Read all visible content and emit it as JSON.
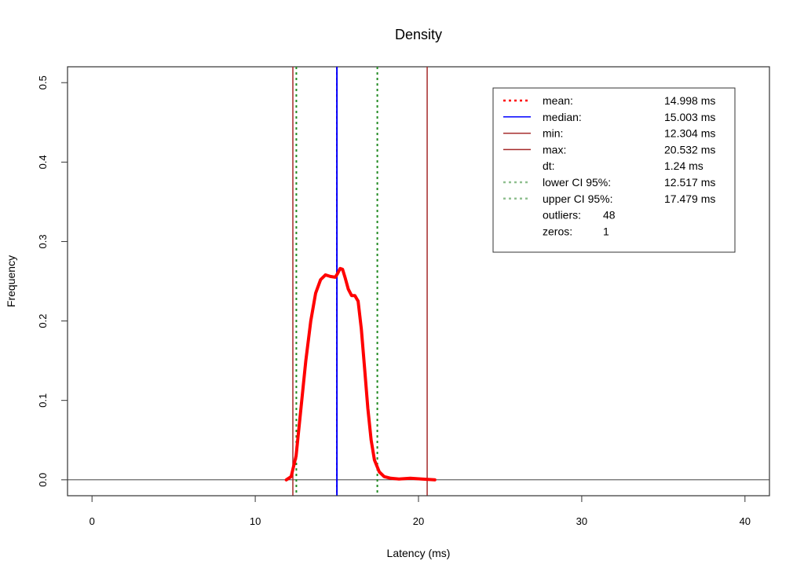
{
  "chart_data": {
    "type": "line",
    "title": "Density",
    "xlabel": "Latency (ms)",
    "ylabel": "Frequency",
    "xlim": [
      -1.5,
      41.5
    ],
    "ylim": [
      -0.02,
      0.52
    ],
    "x_ticks": [
      0,
      10,
      20,
      30,
      40
    ],
    "y_ticks": [
      0.0,
      0.1,
      0.2,
      0.3,
      0.4,
      0.5
    ],
    "x_tick_labels": [
      "0",
      "10",
      "20",
      "30",
      "40"
    ],
    "y_tick_labels": [
      "0.0",
      "0.1",
      "0.2",
      "0.3",
      "0.4",
      "0.5"
    ],
    "legend_position": "top-right",
    "density": {
      "color": "#ff0000",
      "x": [
        11.9,
        12.2,
        12.5,
        12.8,
        13.1,
        13.4,
        13.7,
        14.0,
        14.3,
        14.6,
        14.9,
        15.05,
        15.2,
        15.35,
        15.5,
        15.7,
        15.9,
        16.1,
        16.3,
        16.5,
        16.7,
        16.9,
        17.1,
        17.3,
        17.6,
        17.9,
        18.3,
        18.8,
        19.5,
        20.2,
        21.0
      ],
      "y": [
        0.0,
        0.004,
        0.03,
        0.09,
        0.15,
        0.2,
        0.235,
        0.252,
        0.258,
        0.256,
        0.255,
        0.26,
        0.266,
        0.265,
        0.255,
        0.24,
        0.232,
        0.232,
        0.225,
        0.19,
        0.14,
        0.09,
        0.05,
        0.025,
        0.01,
        0.004,
        0.002,
        0.001,
        0.002,
        0.001,
        0.0
      ]
    },
    "vlines": [
      {
        "name": "mean",
        "x": 14.998,
        "color": "#ff0000",
        "style": "dotted"
      },
      {
        "name": "median",
        "x": 15.003,
        "color": "#0000ff",
        "style": "solid"
      },
      {
        "name": "min",
        "x": 12.304,
        "color": "#a52a2a",
        "style": "solid"
      },
      {
        "name": "max",
        "x": 20.532,
        "color": "#a52a2a",
        "style": "solid"
      },
      {
        "name": "lower CI 95%",
        "x": 12.517,
        "color": "#228b22",
        "style": "dotted"
      },
      {
        "name": "upper CI 95%",
        "x": 17.479,
        "color": "#228b22",
        "style": "dotted"
      }
    ],
    "hline": {
      "y": 0.0,
      "color": "#444444"
    },
    "legend": [
      {
        "label": "mean:",
        "value": "14.998 ms",
        "color": "#ff0000",
        "style": "dotted"
      },
      {
        "label": "median:",
        "value": "15.003 ms",
        "color": "#0000ff",
        "style": "solid"
      },
      {
        "label": "min:",
        "value": "12.304 ms",
        "color": "#a52a2a",
        "style": "solid"
      },
      {
        "label": "max:",
        "value": "20.532 ms",
        "color": "#a52a2a",
        "style": "solid"
      },
      {
        "label": "dt:",
        "value": "1.24 ms",
        "color": "",
        "style": "none"
      },
      {
        "label": "lower CI 95%:",
        "value": "12.517 ms",
        "color": "#90c090",
        "style": "dotted"
      },
      {
        "label": "upper CI 95%:",
        "value": "17.479 ms",
        "color": "#90c090",
        "style": "dotted"
      },
      {
        "label": "outliers:",
        "value": "48",
        "color": "",
        "style": "none",
        "short": true
      },
      {
        "label": "zeros:",
        "value": "1",
        "color": "",
        "style": "none",
        "short": true
      }
    ]
  }
}
